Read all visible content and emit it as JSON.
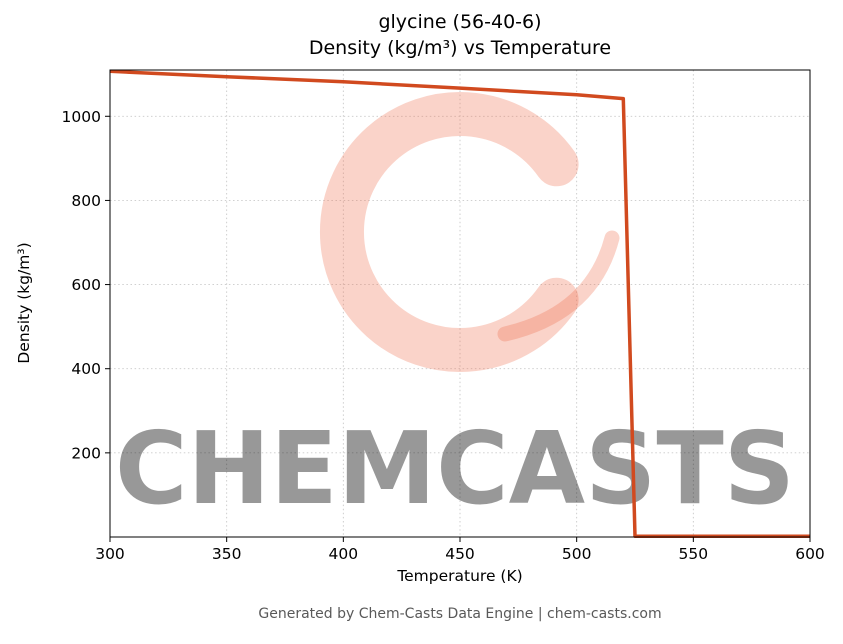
{
  "figure": {
    "title_line1": "glycine (56-40-6)",
    "title_line2": "Density (kg/m³) vs Temperature",
    "footer": "Generated by Chem-Casts Data Engine | chem-casts.com"
  },
  "watermark": {
    "text": "CHEMCASTS",
    "logo": "chemcasts-c-brush-logo",
    "color": "#ee6c4d",
    "text_opacity": 0.4,
    "logo_opacity": 0.3
  },
  "chart_data": {
    "type": "line",
    "title": "glycine (56-40-6) Density (kg/m³) vs Temperature",
    "xlabel": "Temperature (K)",
    "ylabel": "Density (kg/m³)",
    "xlim": [
      300,
      600
    ],
    "ylim": [
      0,
      1110
    ],
    "xticks": [
      300,
      350,
      400,
      450,
      500,
      550,
      600
    ],
    "yticks": [
      200,
      400,
      600,
      800,
      1000
    ],
    "grid": true,
    "grid_style": "dotted",
    "legend": false,
    "line_color": "#d14a1f",
    "series": [
      {
        "name": "Density (kg/m³)",
        "points": [
          [
            300,
            1107
          ],
          [
            350,
            1094
          ],
          [
            400,
            1082
          ],
          [
            450,
            1067
          ],
          [
            500,
            1051
          ],
          [
            520,
            1042
          ],
          [
            525,
            2
          ],
          [
            600,
            2
          ]
        ]
      }
    ]
  }
}
